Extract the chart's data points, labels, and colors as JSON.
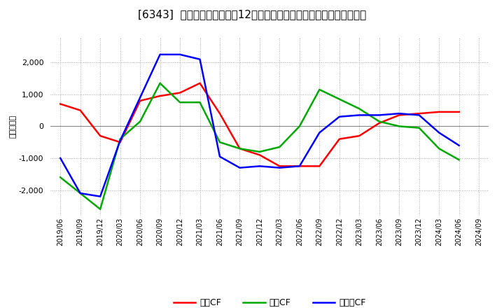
{
  "title": "[6343]  キャッシュフローの12か月移動合計の対前年同期増減額の推移",
  "ylabel": "（百万円）",
  "x_labels": [
    "2019/06",
    "2019/09",
    "2019/12",
    "2020/03",
    "2020/06",
    "2020/09",
    "2020/12",
    "2021/03",
    "2021/06",
    "2021/09",
    "2021/12",
    "2022/03",
    "2022/06",
    "2022/09",
    "2022/12",
    "2023/03",
    "2023/06",
    "2023/09",
    "2023/12",
    "2024/03",
    "2024/06",
    "2024/09"
  ],
  "operating_cf": [
    700,
    500,
    -300,
    -500,
    800,
    950,
    1050,
    1350,
    400,
    -700,
    -900,
    -1250,
    -1250,
    -1250,
    -400,
    -300,
    100,
    350,
    400,
    450,
    450,
    null
  ],
  "investing_cf": [
    -1600,
    -2100,
    -2600,
    -400,
    150,
    1350,
    750,
    750,
    -500,
    -700,
    -800,
    -650,
    0,
    1150,
    850,
    550,
    150,
    0,
    -50,
    -700,
    -1050,
    null
  ],
  "free_cf": [
    -1000,
    -2100,
    -2200,
    -450,
    900,
    2250,
    2250,
    2100,
    -950,
    -1300,
    -1250,
    -1300,
    -1250,
    -200,
    300,
    350,
    350,
    400,
    350,
    -200,
    -600,
    null
  ],
  "line_colors": {
    "operating_cf": "#ff0000",
    "investing_cf": "#00aa00",
    "free_cf": "#0000ff"
  },
  "legend_labels": {
    "operating_cf": "営業CF",
    "investing_cf": "投資CF",
    "free_cf": "フリーCF"
  },
  "ylim": [
    -2800,
    2800
  ],
  "yticks": [
    -2000,
    -1000,
    0,
    1000,
    2000
  ],
  "bg_color": "#ffffff",
  "plot_bg_color": "#ffffff",
  "grid_color": "#aaaaaa",
  "title_fontsize": 11
}
